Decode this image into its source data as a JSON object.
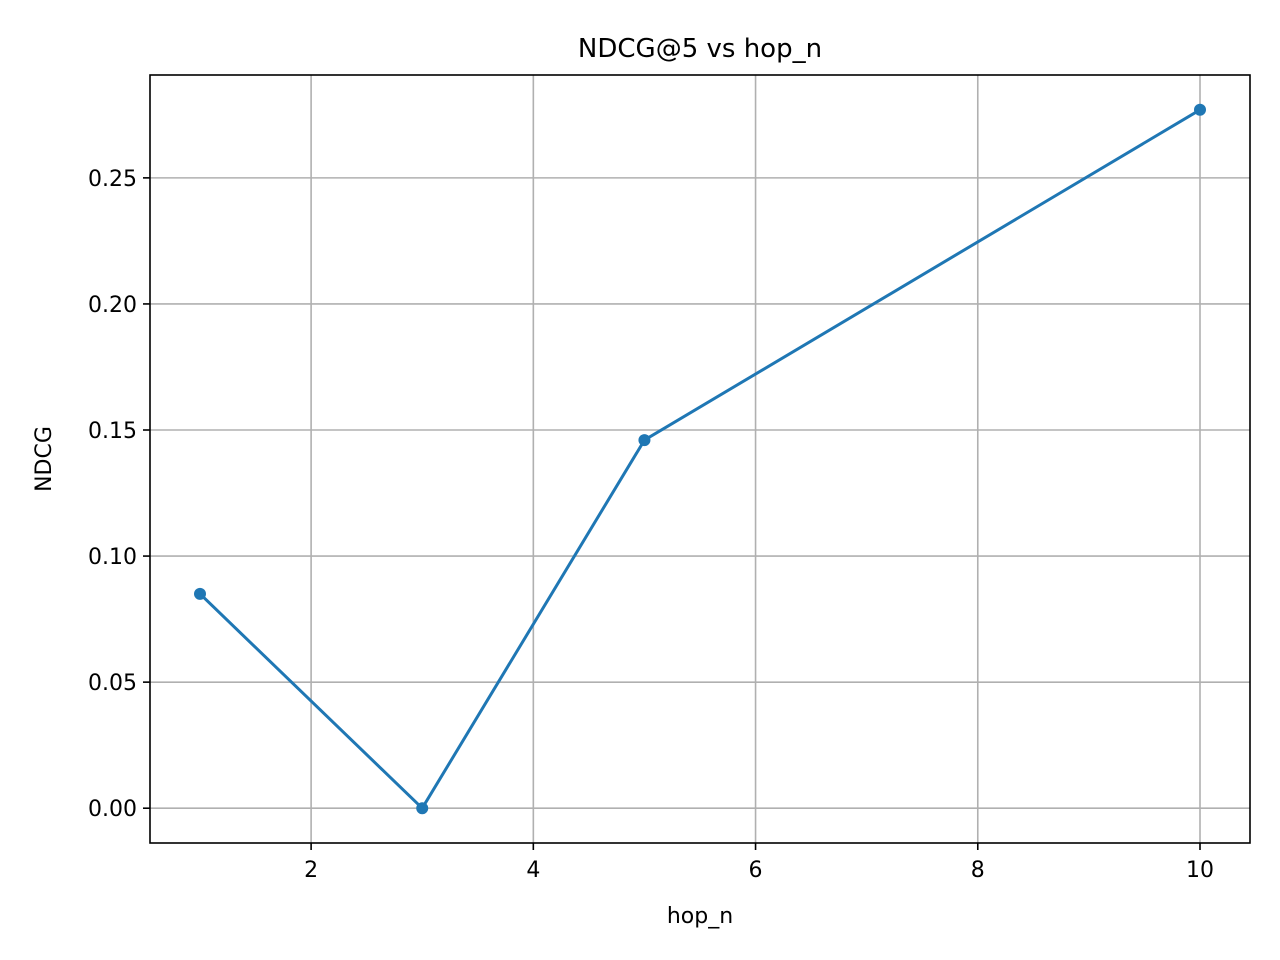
{
  "chart_data": {
    "type": "line",
    "title": "NDCG@5 vs hop_n",
    "xlabel": "hop_n",
    "ylabel": "NDCG",
    "x": [
      1,
      3,
      5,
      10
    ],
    "series": [
      {
        "values": [
          0.085,
          0.0,
          0.146,
          0.277
        ]
      }
    ],
    "xlim": [
      0.55,
      10.45
    ],
    "ylim": [
      -0.0138,
      0.2908
    ],
    "xticks": [
      2,
      4,
      6,
      8,
      10
    ],
    "xtick_labels": [
      "2",
      "4",
      "6",
      "8",
      "10"
    ],
    "yticks": [
      0.0,
      0.05,
      0.1,
      0.15,
      0.2,
      0.25
    ],
    "ytick_labels": [
      "0.00",
      "0.05",
      "0.10",
      "0.15",
      "0.20",
      "0.25"
    ],
    "grid": true,
    "legend": "none",
    "colors": {
      "line": "#1f77b4",
      "grid": "#b0b0b0",
      "frame": "#000000"
    }
  }
}
